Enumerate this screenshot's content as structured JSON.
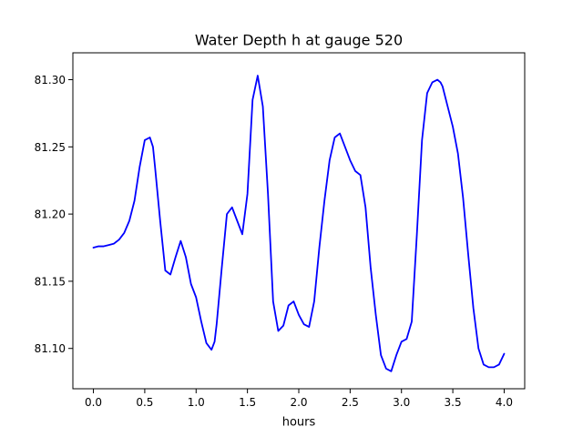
{
  "chart_data": {
    "type": "line",
    "title": "Water Depth h at gauge 520",
    "xlabel": "hours",
    "ylabel": "",
    "xlim": [
      -0.2,
      4.2
    ],
    "ylim": [
      81.07,
      81.32
    ],
    "xticks": [
      0.0,
      0.5,
      1.0,
      1.5,
      2.0,
      2.5,
      3.0,
      3.5,
      4.0
    ],
    "yticks": [
      81.1,
      81.15,
      81.2,
      81.25,
      81.3
    ],
    "xtick_labels": [
      "0.0",
      "0.5",
      "1.0",
      "1.5",
      "2.0",
      "2.5",
      "3.0",
      "3.5",
      "4.0"
    ],
    "ytick_labels": [
      "81.10",
      "81.15",
      "81.20",
      "81.25",
      "81.30"
    ],
    "grid": false,
    "series": [
      {
        "color": "#0000ff",
        "x": [
          0.0,
          0.05,
          0.1,
          0.15,
          0.2,
          0.25,
          0.3,
          0.35,
          0.4,
          0.45,
          0.5,
          0.55,
          0.58,
          0.6,
          0.65,
          0.7,
          0.75,
          0.8,
          0.85,
          0.9,
          0.95,
          1.0,
          1.05,
          1.1,
          1.15,
          1.18,
          1.2,
          1.25,
          1.3,
          1.35,
          1.4,
          1.45,
          1.5,
          1.55,
          1.6,
          1.65,
          1.7,
          1.75,
          1.8,
          1.85,
          1.9,
          1.95,
          2.0,
          2.05,
          2.1,
          2.15,
          2.2,
          2.25,
          2.3,
          2.35,
          2.4,
          2.45,
          2.5,
          2.55,
          2.6,
          2.65,
          2.7,
          2.75,
          2.8,
          2.85,
          2.9,
          2.95,
          3.0,
          3.05,
          3.1,
          3.15,
          3.2,
          3.25,
          3.3,
          3.35,
          3.38,
          3.4,
          3.45,
          3.5,
          3.55,
          3.6,
          3.65,
          3.7,
          3.75,
          3.8,
          3.85,
          3.9,
          3.95,
          4.0
        ],
        "y": [
          81.175,
          81.176,
          81.176,
          81.177,
          81.178,
          81.181,
          81.186,
          81.195,
          81.21,
          81.235,
          81.255,
          81.257,
          81.25,
          81.235,
          81.195,
          81.158,
          81.155,
          81.168,
          81.18,
          81.168,
          81.148,
          81.138,
          81.12,
          81.104,
          81.099,
          81.105,
          81.118,
          81.16,
          81.2,
          81.205,
          81.195,
          81.185,
          81.215,
          81.285,
          81.303,
          81.28,
          81.215,
          81.135,
          81.113,
          81.117,
          81.132,
          81.135,
          81.125,
          81.118,
          81.116,
          81.135,
          81.175,
          81.21,
          81.24,
          81.257,
          81.26,
          81.25,
          81.24,
          81.232,
          81.229,
          81.205,
          81.16,
          81.125,
          81.095,
          81.085,
          81.083,
          81.095,
          81.105,
          81.107,
          81.12,
          81.185,
          81.255,
          81.29,
          81.298,
          81.3,
          81.298,
          81.295,
          81.28,
          81.265,
          81.245,
          81.212,
          81.17,
          81.13,
          81.1,
          81.088,
          81.086,
          81.086,
          81.088,
          81.096
        ]
      }
    ]
  }
}
